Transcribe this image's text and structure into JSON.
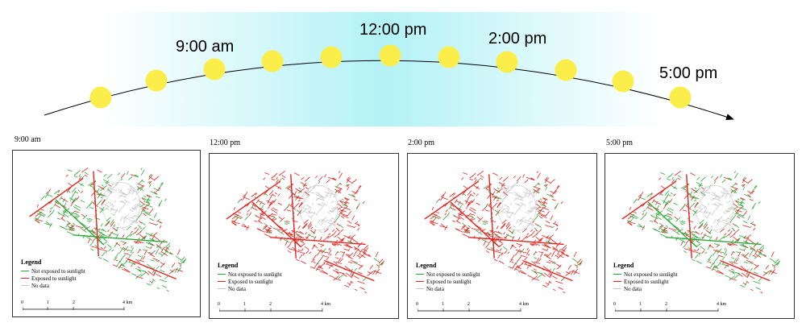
{
  "banner": {
    "colors": {
      "edge": "#ffffff",
      "center": "#b3f2f6",
      "sun": "#fcee4a",
      "arc": "#000000"
    },
    "sun_count": 11,
    "time_labels": [
      "9:00 am",
      "12:00 pm",
      "2:00 pm",
      "5:00 pm"
    ]
  },
  "panels": [
    {
      "time": "9:00 am",
      "mix_red": 0.35,
      "legend": {
        "title": "Legend",
        "items": [
          {
            "label": "Not exposed to sunlight",
            "color": "#2ea83a"
          },
          {
            "label": "Exposed to sunlight",
            "color": "#e2241f"
          },
          {
            "label": "No data",
            "color": "#c8c8c8"
          }
        ]
      },
      "scale": {
        "ticks": [
          "0",
          "1",
          "2",
          "4 km"
        ]
      }
    },
    {
      "time": "12:00 pm",
      "mix_red": 0.85,
      "legend": {
        "title": "Legend",
        "items": [
          {
            "label": "Not exposed to sunlight",
            "color": "#2ea83a"
          },
          {
            "label": "Exposed to sunlight",
            "color": "#e2241f"
          },
          {
            "label": "No data",
            "color": "#c8c8c8"
          }
        ]
      },
      "scale": {
        "ticks": [
          "0",
          "1",
          "2",
          "4 km"
        ]
      }
    },
    {
      "time": "2:00 pm",
      "mix_red": 0.82,
      "legend": {
        "title": "Legend",
        "items": [
          {
            "label": "Not exposed to sunlight",
            "color": "#2ea83a"
          },
          {
            "label": "Exposed to sunlight",
            "color": "#e2241f"
          },
          {
            "label": "No data",
            "color": "#c8c8c8"
          }
        ]
      },
      "scale": {
        "ticks": [
          "0",
          "1",
          "2",
          "4 km"
        ]
      }
    },
    {
      "time": "5:00 pm",
      "mix_red": 0.4,
      "legend": {
        "title": "Legend",
        "items": [
          {
            "label": "Not exposed to sunlight",
            "color": "#2ea83a"
          },
          {
            "label": "Exposed to sunlight",
            "color": "#e2241f"
          },
          {
            "label": "No data",
            "color": "#c8c8c8"
          }
        ]
      },
      "scale": {
        "ticks": [
          "0",
          "1",
          "2",
          "4 km"
        ]
      }
    }
  ]
}
